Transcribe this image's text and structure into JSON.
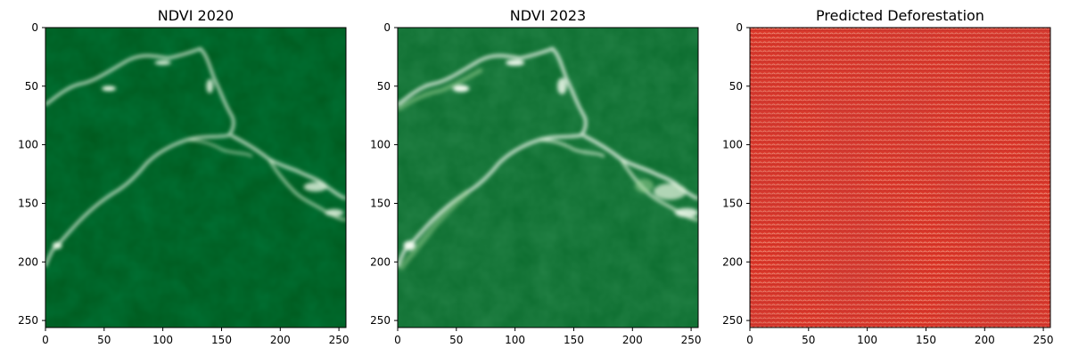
{
  "figure": {
    "panels": [
      {
        "key": "ndvi2020",
        "title": "NDVI 2020",
        "x_ticks": [
          "0",
          "50",
          "100",
          "150",
          "200",
          "250"
        ],
        "y_ticks": [
          "0",
          "50",
          "100",
          "150",
          "200",
          "250"
        ],
        "colormap": "Greens",
        "base_color": "#00591d",
        "highlight_color": "#e8f6e3"
      },
      {
        "key": "ndvi2023",
        "title": "NDVI 2023",
        "x_ticks": [
          "0",
          "50",
          "100",
          "150",
          "200",
          "250"
        ],
        "y_ticks": [
          "0",
          "50",
          "100",
          "150",
          "200",
          "250"
        ],
        "colormap": "Greens",
        "base_color": "#0b6c2e",
        "highlight_color": "#f2fbef"
      },
      {
        "key": "deforestation",
        "title": "Predicted Deforestation",
        "x_ticks": [
          "0",
          "50",
          "100",
          "150",
          "200",
          "250"
        ],
        "y_ticks": [
          "0",
          "50",
          "100",
          "150",
          "200",
          "250"
        ],
        "colormap": "Reds",
        "base_color": "#e03828",
        "highlight_color": "#f4a38a"
      }
    ]
  }
}
